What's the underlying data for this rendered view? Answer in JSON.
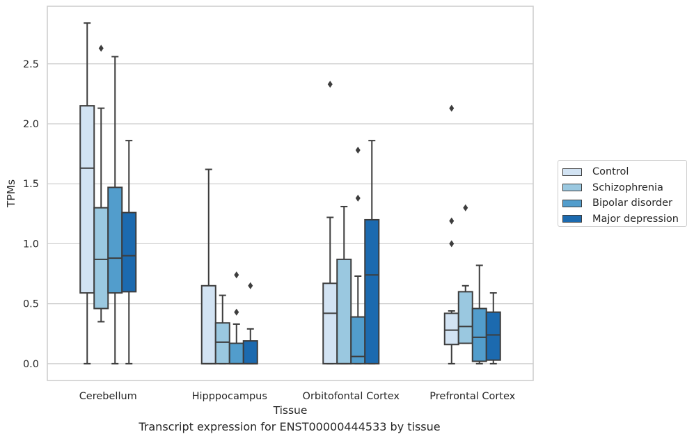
{
  "caption": "Transcript expression for ENST00000444533 by tissue",
  "chart_data": {
    "type": "box",
    "xlabel": "Tissue",
    "ylabel": "TPMs",
    "ylim": [
      -0.14,
      2.98
    ],
    "yticks": [
      "0.0",
      "0.5",
      "1.0",
      "1.5",
      "2.0",
      "2.5"
    ],
    "grid": "horizontal",
    "legend_position": "right",
    "categories": [
      "Cerebellum",
      "Hipppocampus",
      "Orbitofontal Cortex",
      "Prefrontal Cortex"
    ],
    "series": [
      {
        "name": "Control",
        "color": "#d2e3f3",
        "boxes": [
          {
            "whisker_low": 0.0,
            "q1": 0.59,
            "median": 1.63,
            "q3": 2.15,
            "whisker_high": 2.84,
            "outliers": []
          },
          {
            "whisker_low": 0.0,
            "q1": 0.0,
            "median": 0.0,
            "q3": 0.65,
            "whisker_high": 1.62,
            "outliers": []
          },
          {
            "whisker_low": 0.0,
            "q1": 0.0,
            "median": 0.42,
            "q3": 0.67,
            "whisker_high": 1.22,
            "outliers": [
              2.33
            ]
          },
          {
            "whisker_low": 0.0,
            "q1": 0.16,
            "median": 0.28,
            "q3": 0.42,
            "whisker_high": 0.44,
            "outliers": [
              1.0,
              1.19,
              2.13
            ]
          }
        ]
      },
      {
        "name": "Schizophrenia",
        "color": "#9ac8e0",
        "boxes": [
          {
            "whisker_low": 0.35,
            "q1": 0.46,
            "median": 0.87,
            "q3": 1.3,
            "whisker_high": 2.13,
            "outliers": [
              2.63
            ]
          },
          {
            "whisker_low": 0.0,
            "q1": 0.0,
            "median": 0.18,
            "q3": 0.34,
            "whisker_high": 0.57,
            "outliers": []
          },
          {
            "whisker_low": 0.0,
            "q1": 0.0,
            "median": 0.0,
            "q3": 0.87,
            "whisker_high": 1.31,
            "outliers": []
          },
          {
            "whisker_low": 0.17,
            "q1": 0.17,
            "median": 0.31,
            "q3": 0.6,
            "whisker_high": 0.65,
            "outliers": [
              1.3
            ]
          }
        ]
      },
      {
        "name": "Bipolar disorder",
        "color": "#529dcc",
        "boxes": [
          {
            "whisker_low": 0.0,
            "q1": 0.59,
            "median": 0.88,
            "q3": 1.47,
            "whisker_high": 2.56,
            "outliers": []
          },
          {
            "whisker_low": 0.0,
            "q1": 0.0,
            "median": 0.0,
            "q3": 0.17,
            "whisker_high": 0.33,
            "outliers": [
              0.43,
              0.74
            ]
          },
          {
            "whisker_low": 0.0,
            "q1": 0.0,
            "median": 0.06,
            "q3": 0.39,
            "whisker_high": 0.73,
            "outliers": [
              1.38,
              1.78
            ]
          },
          {
            "whisker_low": 0.0,
            "q1": 0.02,
            "median": 0.22,
            "q3": 0.46,
            "whisker_high": 0.82,
            "outliers": []
          }
        ]
      },
      {
        "name": "Major depression",
        "color": "#1c6aaf",
        "boxes": [
          {
            "whisker_low": 0.0,
            "q1": 0.6,
            "median": 0.9,
            "q3": 1.26,
            "whisker_high": 1.86,
            "outliers": []
          },
          {
            "whisker_low": 0.0,
            "q1": 0.0,
            "median": 0.0,
            "q3": 0.19,
            "whisker_high": 0.29,
            "outliers": [
              0.65
            ]
          },
          {
            "whisker_low": 0.0,
            "q1": 0.0,
            "median": 0.74,
            "q3": 1.2,
            "whisker_high": 1.86,
            "outliers": []
          },
          {
            "whisker_low": 0.0,
            "q1": 0.03,
            "median": 0.24,
            "q3": 0.43,
            "whisker_high": 0.59,
            "outliers": []
          }
        ]
      }
    ]
  }
}
